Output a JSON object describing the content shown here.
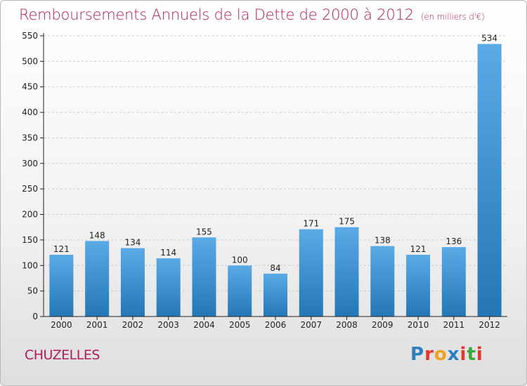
{
  "header": {
    "title": "Remboursements Annuels de la Dette de 2000 à 2012",
    "subtitle": "(en milliers d'€)"
  },
  "commune": "CHUZELLES",
  "logo": {
    "text": "Proxiti",
    "letter_colors": [
      "#2a7fc1",
      "#e8342b",
      "#f0a020",
      "#2a7fc1",
      "#e8342b",
      "#3aaa35",
      "#e8342b"
    ]
  },
  "chart_data": {
    "type": "bar",
    "title": "Remboursements Annuels de la Dette de 2000 à 2012",
    "categories": [
      "2000",
      "2001",
      "2002",
      "2003",
      "2004",
      "2005",
      "2006",
      "2007",
      "2008",
      "2009",
      "2010",
      "2011",
      "2012"
    ],
    "values": [
      121,
      148,
      134,
      114,
      155,
      100,
      84,
      171,
      175,
      138,
      121,
      136,
      534
    ],
    "data_labels": [
      "121",
      "148",
      "134",
      "114",
      "155",
      "100",
      "84",
      "171",
      "175",
      "138",
      "121",
      "136",
      "534"
    ],
    "ylim": [
      0,
      550
    ],
    "yticks": [
      "0",
      "50",
      "100",
      "150",
      "200",
      "250",
      "300",
      "350",
      "400",
      "450",
      "500",
      "550"
    ],
    "grid": true,
    "colors": {
      "bar_top": "#5aaae6",
      "bar_bottom": "#2476b5",
      "grid": "#cccccc",
      "axis": "#222222"
    }
  }
}
